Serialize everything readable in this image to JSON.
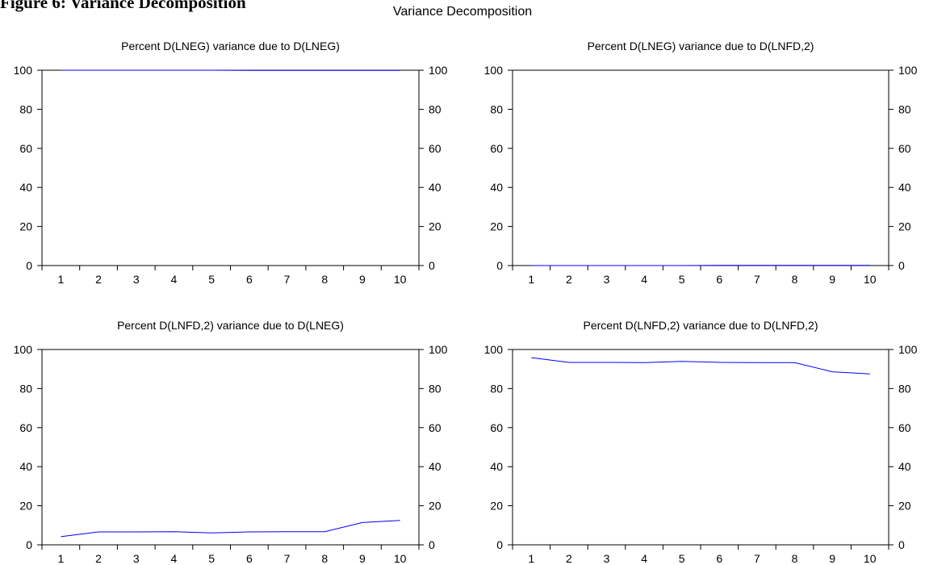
{
  "figure": {
    "caption": "Figure 6: Variance Decomposition",
    "main_title": "Variance Decomposition"
  },
  "chart_data": [
    {
      "type": "line",
      "title": "Percent D(LNEG) variance due to D(LNEG)",
      "x": [
        1,
        2,
        3,
        4,
        5,
        6,
        7,
        8,
        9,
        10
      ],
      "series": [
        {
          "values": [
            100,
            100,
            100,
            100,
            100,
            99.9,
            99.9,
            99.9,
            99.9,
            99.9
          ],
          "color": "#0000ff"
        }
      ],
      "ylim": [
        0,
        100
      ],
      "yticks": [
        0,
        20,
        40,
        60,
        80,
        100
      ],
      "xticks": [
        "1",
        "2",
        "3",
        "4",
        "5",
        "6",
        "7",
        "8",
        "9",
        "10"
      ],
      "grid": false,
      "right_axis": true
    },
    {
      "type": "line",
      "title": "Percent D(LNEG) variance due to D(LNFD,2)",
      "x": [
        1,
        2,
        3,
        4,
        5,
        6,
        7,
        8,
        9,
        10
      ],
      "series": [
        {
          "values": [
            0,
            0,
            0,
            0,
            0,
            0.1,
            0.1,
            0.1,
            0.1,
            0.1
          ],
          "color": "#0000ff"
        }
      ],
      "ylim": [
        0,
        100
      ],
      "yticks": [
        0,
        20,
        40,
        60,
        80,
        100
      ],
      "xticks": [
        "1",
        "2",
        "3",
        "4",
        "5",
        "6",
        "7",
        "8",
        "9",
        "10"
      ],
      "grid": false,
      "right_axis": true
    },
    {
      "type": "line",
      "title": "Percent D(LNFD,2) variance due to D(LNEG)",
      "x": [
        1,
        2,
        3,
        4,
        5,
        6,
        7,
        8,
        9,
        10
      ],
      "series": [
        {
          "values": [
            4.2,
            6.6,
            6.6,
            6.7,
            6.1,
            6.6,
            6.7,
            6.7,
            11.4,
            12.5
          ],
          "color": "#0000ff"
        }
      ],
      "ylim": [
        0,
        100
      ],
      "yticks": [
        0,
        20,
        40,
        60,
        80,
        100
      ],
      "xticks": [
        "1",
        "2",
        "3",
        "4",
        "5",
        "6",
        "7",
        "8",
        "9",
        "10"
      ],
      "grid": false,
      "right_axis": true
    },
    {
      "type": "line",
      "title": "Percent D(LNFD,2) variance due to D(LNFD,2)",
      "x": [
        1,
        2,
        3,
        4,
        5,
        6,
        7,
        8,
        9,
        10
      ],
      "series": [
        {
          "values": [
            95.8,
            93.4,
            93.4,
            93.3,
            93.9,
            93.4,
            93.3,
            93.3,
            88.6,
            87.5
          ],
          "color": "#0000ff"
        }
      ],
      "ylim": [
        0,
        100
      ],
      "yticks": [
        0,
        20,
        40,
        60,
        80,
        100
      ],
      "xticks": [
        "1",
        "2",
        "3",
        "4",
        "5",
        "6",
        "7",
        "8",
        "9",
        "10"
      ],
      "grid": false,
      "right_axis": true
    }
  ]
}
